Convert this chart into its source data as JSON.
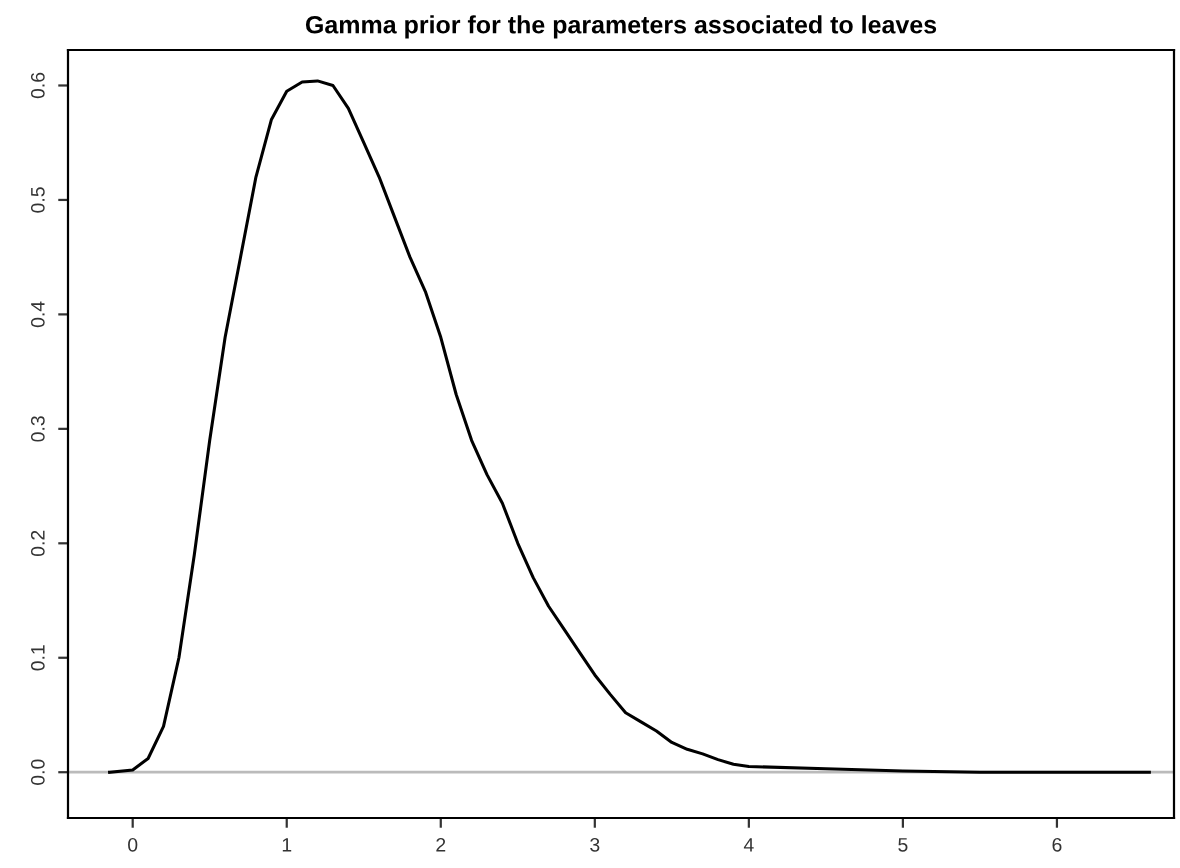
{
  "chart_data": {
    "type": "line",
    "title": "Gamma prior for the parameters associated to leaves",
    "series": [
      {
        "color": "#000000",
        "x": [
          -0.15,
          0,
          0.1,
          0.2,
          0.3,
          0.4,
          0.5,
          0.6,
          0.7,
          0.8,
          0.9,
          1.0,
          1.1,
          1.2,
          1.3,
          1.4,
          1.5,
          1.6,
          1.7,
          1.8,
          1.9,
          2.0,
          2.1,
          2.2,
          2.3,
          2.4,
          2.5,
          2.6,
          2.7,
          2.8,
          2.9,
          3.0,
          3.1,
          3.2,
          3.3,
          3.4,
          3.5,
          3.6,
          3.7,
          3.8,
          3.9,
          4.0,
          4.5,
          5.0,
          5.5,
          6.0,
          6.6
        ],
        "values": [
          0,
          0.002,
          0.012,
          0.04,
          0.1,
          0.19,
          0.29,
          0.38,
          0.45,
          0.52,
          0.57,
          0.595,
          0.603,
          0.604,
          0.6,
          0.58,
          0.55,
          0.52,
          0.485,
          0.45,
          0.42,
          0.38,
          0.33,
          0.29,
          0.26,
          0.235,
          0.2,
          0.17,
          0.145,
          0.125,
          0.105,
          0.085,
          0.068,
          0.052,
          0.044,
          0.036,
          0.026,
          0.02,
          0.016,
          0.011,
          0.007,
          0.005,
          0.003,
          0.001,
          0,
          0,
          0
        ]
      }
    ],
    "ref_lines": [
      {
        "axis": "y",
        "value": 0,
        "color": "#bbbbbb"
      }
    ],
    "xlim": [
      -0.42,
      6.76
    ],
    "ylim": [
      -0.04,
      0.631
    ],
    "xticks": [
      0,
      1,
      2,
      3,
      4,
      5,
      6
    ],
    "yticks": [
      {
        "value": 0,
        "label": "0.0"
      },
      0.1,
      0.2,
      0.3,
      0.4,
      0.5,
      0.6
    ],
    "grid": false,
    "legend": false
  }
}
